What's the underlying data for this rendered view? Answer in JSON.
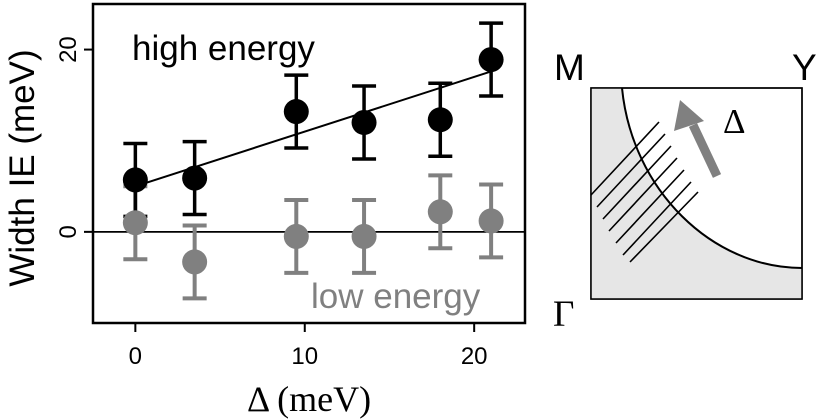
{
  "chart_data": {
    "type": "scatter",
    "title": "",
    "xlabel": "Δ (meV)",
    "ylabel": "Width IE (meV)",
    "xlim": [
      -2.5,
      23
    ],
    "ylim": [
      -10,
      25
    ],
    "xticks": [
      0,
      10,
      20
    ],
    "yticks": [
      0,
      20
    ],
    "grid": false,
    "series": [
      {
        "name": "high energy",
        "color": "#000000",
        "x": [
          0,
          3.5,
          9.5,
          13.5,
          18,
          21
        ],
        "y": [
          5.7,
          5.9,
          13.2,
          12.0,
          12.3,
          18.9
        ],
        "err": [
          4.0,
          4.0,
          4.0,
          4.0,
          4.0,
          4.0
        ],
        "fit_line": {
          "x": [
            0,
            21
          ],
          "y": [
            5.0,
            17.6
          ]
        }
      },
      {
        "name": "low energy",
        "color": "#808080",
        "x": [
          0,
          3.5,
          9.5,
          13.5,
          18,
          21
        ],
        "y": [
          1.0,
          -3.3,
          -0.5,
          -0.5,
          2.2,
          1.2
        ],
        "err": [
          4.0,
          4.0,
          4.0,
          4.0,
          4.0,
          4.0
        ]
      }
    ],
    "zero_line": 0,
    "annotations": {
      "high_label": "high energy",
      "low_label": "low energy"
    }
  },
  "inset": {
    "corner_M": "M",
    "corner_Y": "Y",
    "corner_Gamma": "Γ",
    "arrow_label": "Δ",
    "fill_color": "#e6e6e6",
    "arrow_color": "#808080"
  }
}
